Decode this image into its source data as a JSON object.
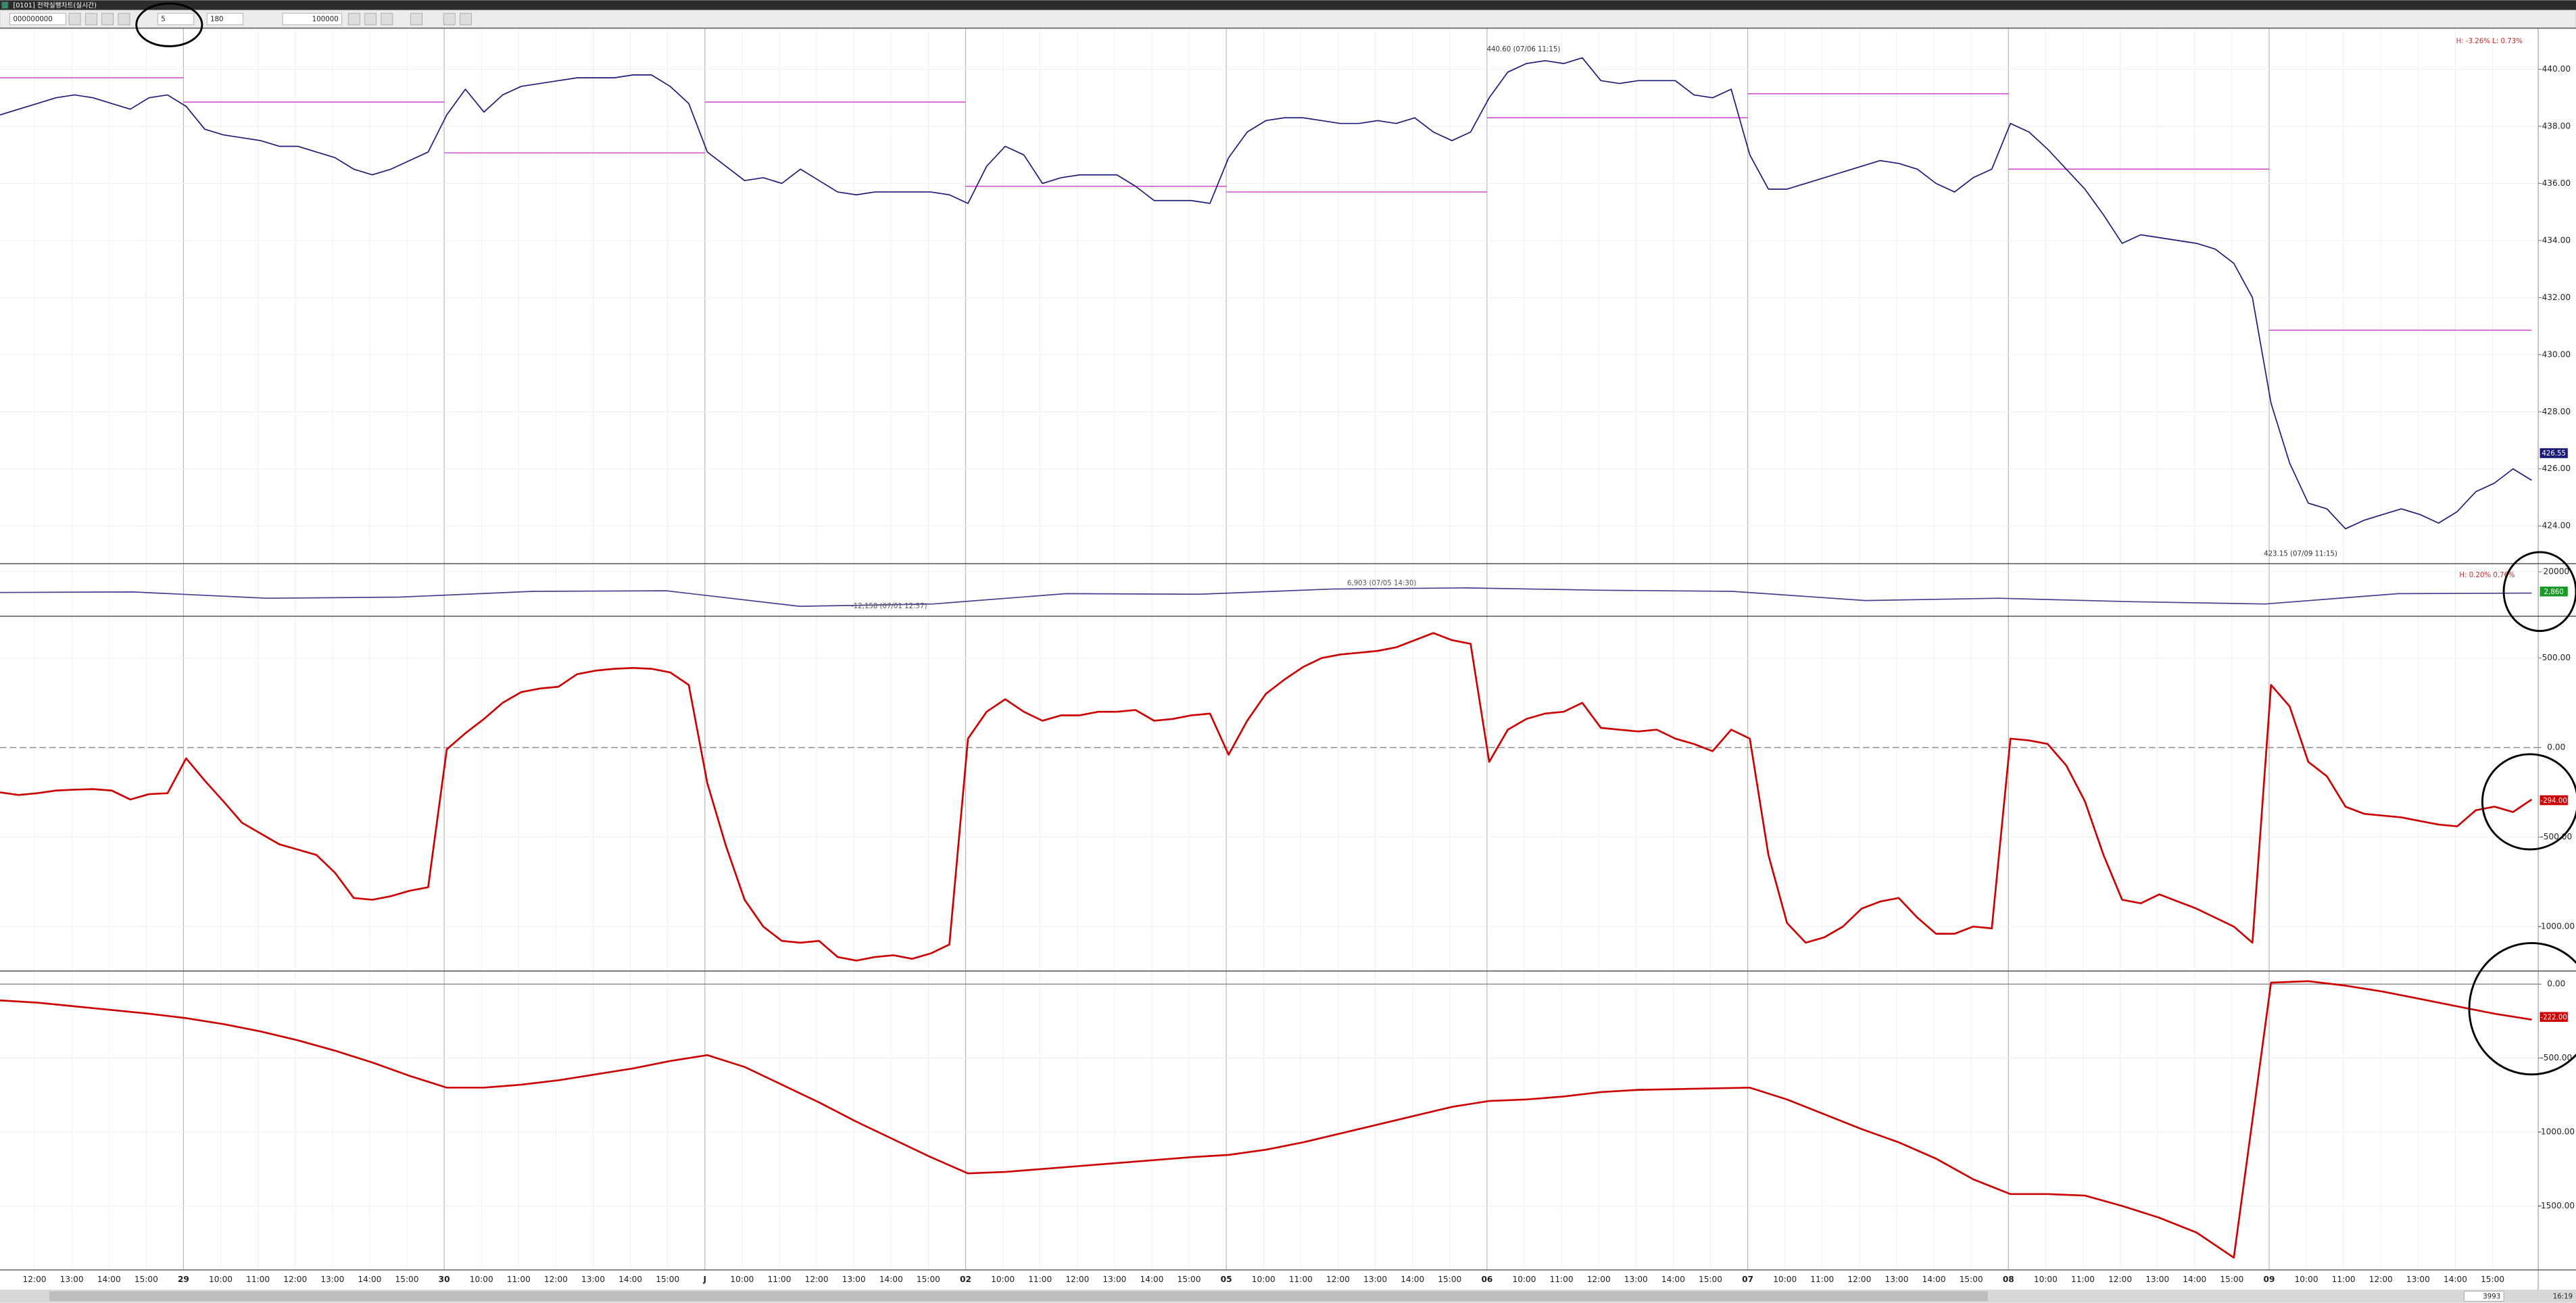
{
  "window": {
    "title": "[0101] 전략실행차트(실시간)",
    "code": "000000000",
    "period": "5",
    "count": "180",
    "amount": "100000",
    "scroll_count": "3993",
    "clock": "16:19"
  },
  "time_axis_labels": [
    "12:00",
    "13:00",
    "14:00",
    "15:00",
    "29",
    "10:00",
    "11:00",
    "12:00",
    "13:00",
    "14:00",
    "15:00",
    "30",
    "10:00",
    "11:00",
    "12:00",
    "13:00",
    "14:00",
    "15:00",
    "J",
    "10:00",
    "11:00",
    "12:00",
    "13:00",
    "14:00",
    "15:00",
    "02",
    "10:00",
    "11:00",
    "12:00",
    "13:00",
    "14:00",
    "15:00",
    "05",
    "10:00",
    "11:00",
    "12:00",
    "13:00",
    "14:00",
    "15:00",
    "06",
    "10:00",
    "11:00",
    "12:00",
    "13:00",
    "14:00",
    "15:00",
    "07",
    "10:00",
    "11:00",
    "12:00",
    "13:00",
    "14:00",
    "15:00",
    "08",
    "10:00",
    "11:00",
    "12:00",
    "13:00",
    "14:00",
    "15:00",
    "09",
    "10:00",
    "11:00",
    "12:00",
    "13:00",
    "14:00",
    "15:00"
  ],
  "chart_data": [
    {
      "type": "line",
      "color": "#1c1c78",
      "ylim": [
        422.68,
        441.44
      ],
      "yticks": [
        {
          "value": 440,
          "label": "440.00"
        },
        {
          "value": 438,
          "label": "438.00"
        },
        {
          "value": 436,
          "label": "436.00"
        },
        {
          "value": 434,
          "label": "434.00"
        },
        {
          "value": 432,
          "label": "432.00"
        },
        {
          "value": 430,
          "label": "430.00"
        },
        {
          "value": 428,
          "label": "428.00"
        },
        {
          "value": 426,
          "label": "426.00"
        },
        {
          "value": 424,
          "label": "424.00"
        }
      ],
      "values": [
        438.4,
        438.6,
        438.8,
        439.0,
        439.1,
        439.0,
        438.8,
        438.6,
        439.0,
        439.1,
        438.7,
        437.9,
        437.7,
        437.6,
        437.5,
        437.3,
        437.3,
        437.1,
        436.9,
        436.5,
        436.3,
        436.5,
        436.8,
        437.1,
        438.4,
        439.3,
        438.5,
        439.1,
        439.4,
        439.5,
        439.6,
        439.7,
        439.7,
        439.7,
        439.8,
        439.8,
        439.4,
        438.8,
        437.1,
        436.6,
        436.1,
        436.2,
        436.0,
        436.5,
        436.1,
        435.7,
        435.6,
        435.7,
        435.7,
        435.7,
        435.7,
        435.6,
        435.3,
        436.6,
        437.3,
        437.0,
        436.0,
        436.2,
        436.3,
        436.3,
        436.3,
        435.9,
        435.4,
        435.4,
        435.4,
        435.3,
        436.9,
        437.8,
        438.2,
        438.3,
        438.3,
        438.2,
        438.1,
        438.1,
        438.2,
        438.1,
        438.3,
        437.8,
        437.5,
        437.8,
        439.0,
        439.9,
        440.2,
        440.3,
        440.2,
        440.4,
        439.6,
        439.5,
        439.6,
        439.6,
        439.6,
        439.1,
        439.0,
        439.3,
        437.0,
        435.8,
        435.8,
        436.0,
        436.2,
        436.4,
        436.6,
        436.8,
        436.7,
        436.5,
        436.0,
        435.7,
        436.2,
        436.5,
        438.1,
        437.8,
        437.2,
        436.5,
        435.8,
        434.9,
        433.9,
        434.2,
        434.1,
        434.0,
        433.9,
        433.7,
        433.2,
        432.0,
        428.3,
        426.2,
        424.8,
        424.6,
        423.9,
        424.2,
        424.4,
        424.6,
        424.4,
        424.1,
        424.5,
        425.2,
        425.5,
        426.0,
        425.6
      ],
      "levels": {
        "color": "#cc44cc",
        "values": [
          439.7,
          438.85,
          437.07,
          438.85,
          435.9,
          435.7,
          438.3,
          439.14,
          436.5,
          430.86
        ]
      },
      "annotations": [
        "440.60 (07/06 11:15)",
        "423.15 (07/09 11:15)"
      ],
      "range_label": "H: -3.26%  L: 0.73%",
      "current": {
        "value": 426.55,
        "label": "426.55",
        "color": "#1c1c78"
      }
    },
    {
      "type": "line",
      "color": "#4b3d8f",
      "ylim": [
        -18600,
        27100
      ],
      "yticks": [
        20000
      ],
      "values": [
        2000,
        2500,
        -3000,
        -2000,
        3000,
        3500,
        -10000,
        -8000,
        1000,
        500,
        5000,
        6000,
        4000,
        3000,
        -5000,
        -3000,
        -6000,
        -8000,
        1000,
        1500
      ],
      "annotations": [
        "6,903 (07/05 14:30)",
        "-12,158 (07/01 12:57)"
      ],
      "range_label": "H: 0.20%  0.76%",
      "current": {
        "value": 2860,
        "label": "2,860",
        "color": "#1a9a2a"
      }
    },
    {
      "type": "line",
      "color": "#cc0000",
      "ylim": [
        -1248,
        734
      ],
      "yticks": [
        {
          "value": 500,
          "label": "500.00"
        },
        {
          "value": 0,
          "label": "0.00"
        },
        {
          "value": -500,
          "label": "-500.00"
        },
        {
          "value": -1000,
          "label": "-1000.00"
        }
      ],
      "values": [
        -250,
        -265,
        -255,
        -240,
        -235,
        -232,
        -240,
        -290,
        -260,
        -255,
        -60,
        -185,
        -300,
        -420,
        -480,
        -540,
        -570,
        -600,
        -700,
        -840,
        -850,
        -830,
        -800,
        -780,
        -10,
        80,
        160,
        250,
        310,
        330,
        340,
        410,
        430,
        440,
        445,
        440,
        420,
        350,
        -200,
        -550,
        -850,
        -1000,
        -1080,
        -1090,
        -1080,
        -1170,
        -1190,
        -1170,
        -1160,
        -1180,
        -1150,
        -1100,
        50,
        200,
        270,
        200,
        150,
        180,
        180,
        200,
        200,
        210,
        150,
        160,
        180,
        190,
        -40,
        150,
        300,
        380,
        450,
        500,
        520,
        530,
        540,
        560,
        600,
        640,
        600,
        580,
        -80,
        100,
        160,
        190,
        200,
        250,
        110,
        100,
        90,
        100,
        50,
        20,
        -20,
        100,
        50,
        -600,
        -980,
        -1090,
        -1060,
        -1000,
        -900,
        -860,
        -840,
        -950,
        -1040,
        -1040,
        -1000,
        -1010,
        50,
        40,
        20,
        -100,
        -300,
        -600,
        -850,
        -870,
        -820,
        -860,
        -900,
        -950,
        -1000,
        -1090,
        350,
        230,
        -80,
        -160,
        -330,
        -370,
        -380,
        -390,
        -410,
        -430,
        -440,
        -350,
        -330,
        -360,
        -290
      ],
      "current": {
        "value": -294,
        "label": "-294.00",
        "color": "#cc0000"
      }
    },
    {
      "type": "line",
      "color": "#cc0000",
      "ylim": [
        -1933,
        89
      ],
      "yticks": [
        {
          "value": 0,
          "label": "0.00"
        },
        {
          "value": -500,
          "label": "-500.00"
        },
        {
          "value": -1000,
          "label": "-1000.00"
        },
        {
          "value": -1500,
          "label": "-1500.00"
        }
      ],
      "values": [
        -110,
        -125,
        -150,
        -175,
        -200,
        -230,
        -270,
        -320,
        -380,
        -450,
        -530,
        -620,
        -700,
        -700,
        -680,
        -650,
        -610,
        -570,
        -520,
        -480,
        -560,
        -680,
        -800,
        -930,
        -1050,
        -1170,
        -1280,
        -1270,
        -1250,
        -1230,
        -1210,
        -1190,
        -1170,
        -1155,
        -1120,
        -1070,
        -1010,
        -950,
        -890,
        -830,
        -790,
        -780,
        -760,
        -730,
        -715,
        -710,
        -705,
        -700,
        -780,
        -880,
        -980,
        -1070,
        -1180,
        -1320,
        -1420,
        -1420,
        -1430,
        -1500,
        -1580,
        -1680,
        -1850,
        10,
        20,
        -10,
        -50,
        -100,
        -150,
        -200,
        -240
      ],
      "current": {
        "value": -222,
        "label": "-222.00",
        "color": "#cc0000"
      }
    }
  ]
}
